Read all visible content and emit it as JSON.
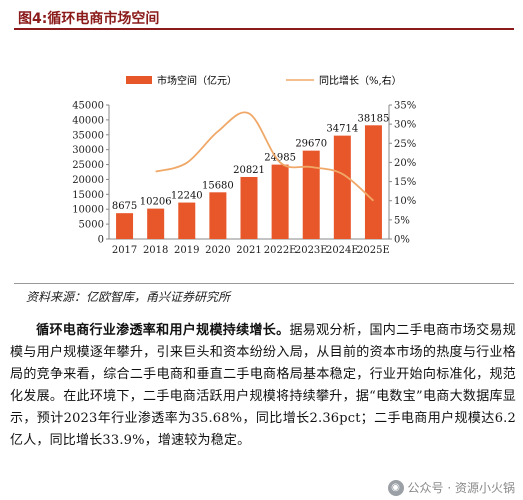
{
  "figure_title": "图4:循环电商市场空间",
  "source": "资料来源：亿欧智库，甬兴证券研究所",
  "paragraph": {
    "lead": "循环电商行业渗透率和用户规模持续增长。",
    "text": "据易观分析，国内二手电商市场交易规模与用户规模逐年攀升，引来巨头和资本纷纷入局，从目前的资本市场的热度与行业格局的竞争来看，综合二手电商和垂直二手电商格局基本稳定，行业开始向标准化，规范化发展。在此环境下，二手电商活跃用户规模将持续攀升，据“电数宝”电商大数据库显示，预计2023年行业渗透率为35.68%，同比增长2.36pct；二手电商用户规模达6.2亿人，同比增长33.9%，增速较为稳定。"
  },
  "watermark": "公众号 · 资源小火锅",
  "chart_data": {
    "type": "bar",
    "categories": [
      "2017",
      "2018",
      "2019",
      "2020",
      "2021",
      "2022E",
      "2023E",
      "2024E",
      "2025E"
    ],
    "series": [
      {
        "name": "市场空间（亿元）",
        "type": "bar",
        "axis": "left",
        "color": "#e8572a",
        "values": [
          8675,
          10206,
          12240,
          15680,
          20821,
          24985,
          29670,
          34714,
          38185
        ]
      },
      {
        "name": "同比增长（%,右）",
        "type": "line",
        "axis": "right",
        "color": "#f0a868",
        "values": [
          null,
          17.6,
          19.9,
          28.1,
          32.8,
          20.0,
          18.8,
          17.0,
          10.0
        ]
      }
    ],
    "ylim_left": [
      0,
      45000
    ],
    "yticks_left": [
      "0",
      "5000",
      "10000",
      "15000",
      "20000",
      "25000",
      "30000",
      "35000",
      "40000",
      "45000"
    ],
    "ylim_right": [
      0,
      35
    ],
    "yticks_right": [
      "0%",
      "5%",
      "10%",
      "15%",
      "20%",
      "25%",
      "30%",
      "35%"
    ],
    "legend_position": "top",
    "grid": false,
    "data_labels": [
      "8675",
      "10206",
      "12240",
      "15680",
      "20821",
      "24985",
      "29670",
      "34714",
      "38185"
    ]
  }
}
